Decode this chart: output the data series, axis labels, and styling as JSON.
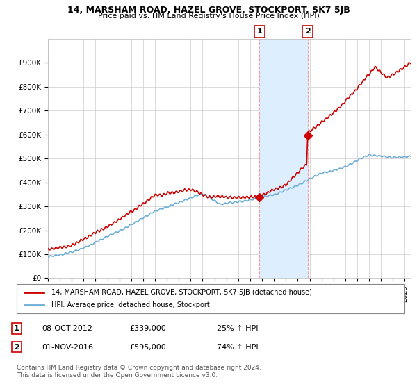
{
  "title": "14, MARSHAM ROAD, HAZEL GROVE, STOCKPORT, SK7 5JB",
  "subtitle": "Price paid vs. HM Land Registry's House Price Index (HPI)",
  "legend_line1": "14, MARSHAM ROAD, HAZEL GROVE, STOCKPORT, SK7 5JB (detached house)",
  "legend_line2": "HPI: Average price, detached house, Stockport",
  "annotation1_date": "08-OCT-2012",
  "annotation1_price": "£339,000",
  "annotation1_hpi": "25% ↑ HPI",
  "annotation2_date": "01-NOV-2016",
  "annotation2_price": "£595,000",
  "annotation2_hpi": "74% ↑ HPI",
  "footer": "Contains HM Land Registry data © Crown copyright and database right 2024.\nThis data is licensed under the Open Government Licence v3.0.",
  "hpi_color": "#6baed6",
  "sale_color": "#cc0000",
  "background_color": "#ffffff",
  "grid_color": "#cccccc",
  "shade_color": "#ddeeff",
  "ylim": [
    0,
    1000000
  ],
  "yticks": [
    0,
    100000,
    200000,
    300000,
    400000,
    500000,
    600000,
    700000,
    800000,
    900000
  ],
  "ytick_labels": [
    "£0",
    "£100K",
    "£200K",
    "£300K",
    "£400K",
    "£500K",
    "£600K",
    "£700K",
    "£800K",
    "£900K"
  ],
  "sale1_x": 2012.78,
  "sale1_y": 339000,
  "sale2_x": 2016.83,
  "sale2_y": 595000,
  "xlim_start": 1995,
  "xlim_end": 2025.5
}
